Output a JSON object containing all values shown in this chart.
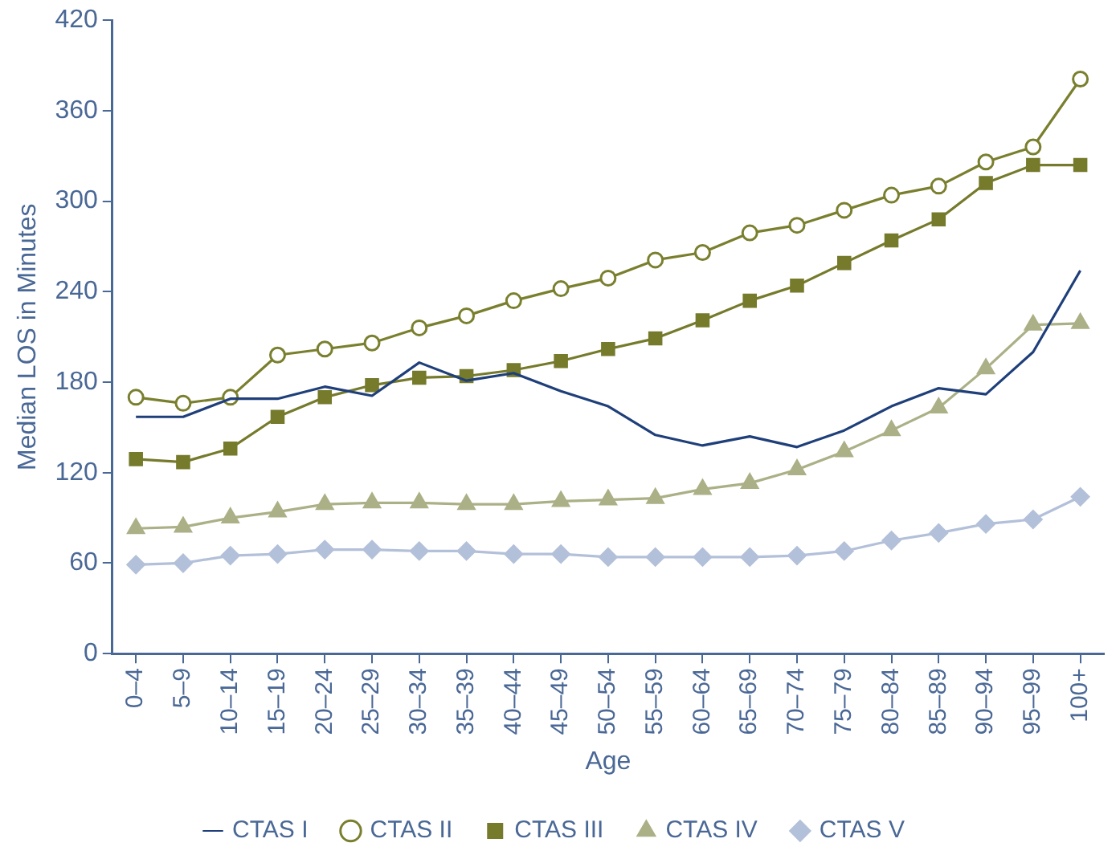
{
  "chart_data": {
    "type": "line",
    "xlabel": "Age",
    "ylabel": "Median LOS in Minutes",
    "categories": [
      "0–4",
      "5–9",
      "10–14",
      "15–19",
      "20–24",
      "25–29",
      "30–34",
      "35–39",
      "40–44",
      "45–49",
      "50–54",
      "55–59",
      "60–64",
      "65–69",
      "70–74",
      "75–79",
      "80–84",
      "85–89",
      "90–94",
      "95–99",
      "100+"
    ],
    "series": [
      {
        "name": "CTAS I",
        "color": "#1f3f7a",
        "marker": "none",
        "values": [
          157,
          157,
          169,
          169,
          177,
          171,
          193,
          181,
          186,
          174,
          164,
          145,
          138,
          144,
          137,
          148,
          164,
          176,
          172,
          200,
          254
        ]
      },
      {
        "name": "CTAS II",
        "color": "#7a7f2e",
        "marker": "circle",
        "values": [
          170,
          166,
          170,
          198,
          202,
          206,
          216,
          224,
          234,
          242,
          249,
          261,
          266,
          279,
          284,
          294,
          304,
          310,
          326,
          336,
          381
        ]
      },
      {
        "name": "CTAS III",
        "color": "#767a2b",
        "marker": "square",
        "values": [
          129,
          127,
          136,
          157,
          170,
          178,
          183,
          184,
          188,
          194,
          202,
          209,
          221,
          234,
          244,
          259,
          274,
          288,
          312,
          324,
          324
        ]
      },
      {
        "name": "CTAS IV",
        "color": "#acb086",
        "marker": "triangle",
        "values": [
          83,
          84,
          90,
          94,
          99,
          100,
          100,
          99,
          99,
          101,
          102,
          103,
          109,
          113,
          122,
          134,
          148,
          163,
          189,
          218,
          219
        ]
      },
      {
        "name": "CTAS V",
        "color": "#b3c0d9",
        "marker": "diamond",
        "values": [
          59,
          60,
          65,
          66,
          69,
          69,
          68,
          68,
          66,
          66,
          64,
          64,
          64,
          64,
          65,
          68,
          75,
          80,
          86,
          89,
          104
        ]
      }
    ],
    "ylim": [
      0,
      420
    ],
    "yticks": [
      0,
      60,
      120,
      180,
      240,
      300,
      360,
      420
    ],
    "grid": false,
    "legend": "bottom"
  }
}
